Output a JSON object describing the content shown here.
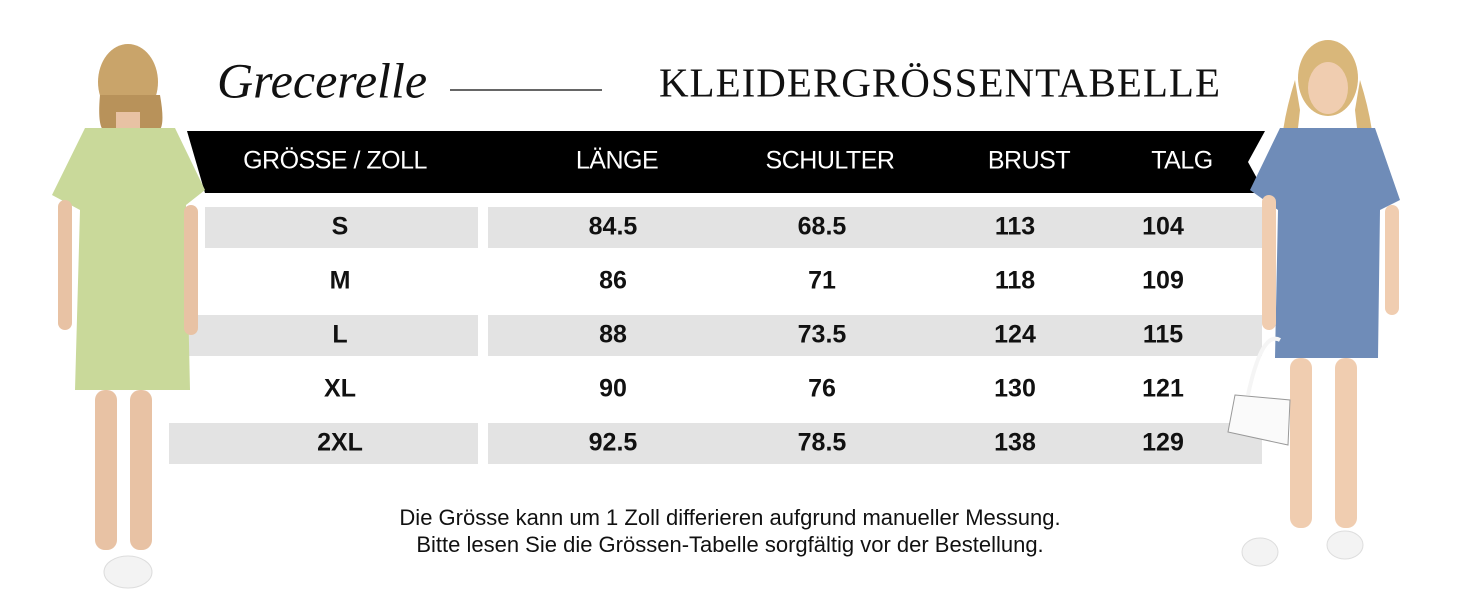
{
  "brand": "Grecerelle",
  "title": "KLEIDERGRÖSSENTABELLE",
  "table": {
    "header": [
      "GRÖSSE / ZOLL",
      "LÄNGE",
      "SCHULTER",
      "BRUST",
      "TALG"
    ],
    "rows": [
      [
        "S",
        "84.5",
        "68.5",
        "113",
        "104"
      ],
      [
        "M",
        "86",
        "71",
        "118",
        "109"
      ],
      [
        "L",
        "88",
        "73.5",
        "124",
        "115"
      ],
      [
        "XL",
        "90",
        "76",
        "130",
        "121"
      ],
      [
        "2XL",
        "92.5",
        "78.5",
        "138",
        "129"
      ]
    ]
  },
  "note": [
    "Die Grösse kann um 1 Zoll differieren aufgrund manueller Messung.",
    "Bitte lesen Sie die Grössen-Tabelle sorgfältig vor der Bestellung."
  ]
}
